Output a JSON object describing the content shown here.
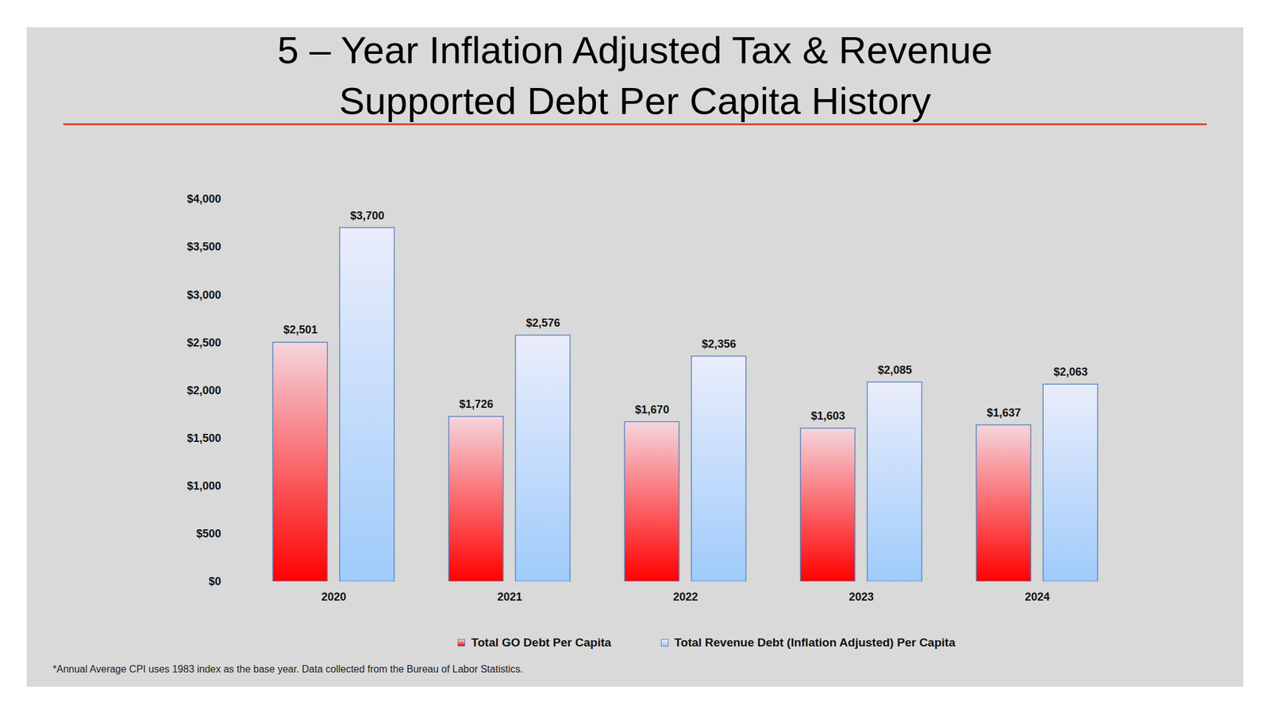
{
  "chart_data": {
    "type": "bar",
    "title": "5 – Year Inflation Adjusted Tax & Revenue Supported Debt Per Capita History",
    "categories": [
      "2020",
      "2021",
      "2022",
      "2023",
      "2024"
    ],
    "series": [
      {
        "name": "Total GO Debt Per Capita",
        "color": "#ff0000",
        "values": [
          2501,
          1726,
          1670,
          1603,
          1637
        ],
        "value_labels": [
          "$2,501",
          "$1,726",
          "$1,670",
          "$1,603",
          "$1,637"
        ]
      },
      {
        "name": "Total Revenue Debt (Inflation Adjusted) Per Capita",
        "color": "#9fcbfb",
        "values": [
          3700,
          2576,
          2356,
          2085,
          2063
        ],
        "value_labels": [
          "$3,700",
          "$2,576",
          "$2,356",
          "$2,085",
          "$2,063"
        ]
      }
    ],
    "ylim": [
      0,
      4000
    ],
    "yticks": [
      {
        "value": 0,
        "label": "$0"
      },
      {
        "value": 500,
        "label": "$500"
      },
      {
        "value": 1000,
        "label": "$1,000"
      },
      {
        "value": 1500,
        "label": "$1,500"
      },
      {
        "value": 2000,
        "label": "$2,000"
      },
      {
        "value": 2500,
        "label": "$2,500"
      },
      {
        "value": 3000,
        "label": "$3,000"
      },
      {
        "value": 3500,
        "label": "$3,500"
      },
      {
        "value": 4000,
        "label": "$4,000"
      }
    ],
    "grid": false,
    "legend": "bottom",
    "data_labels": true,
    "footnote": "*Annual Average CPI uses 1983 index as the base year. Data collected from the Bureau of Labor Statistics."
  }
}
